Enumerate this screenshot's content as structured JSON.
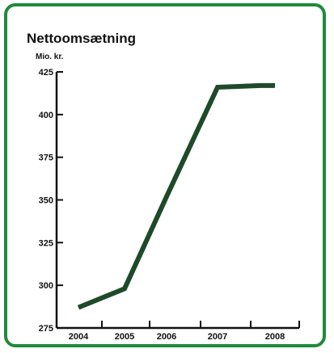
{
  "chart_data": {
    "type": "line",
    "title": "Nettoomsætning",
    "ylabel": "Mio. kr.",
    "xlabel": "",
    "x_categories": [
      "2004",
      "2005",
      "2006",
      "2007",
      "2008"
    ],
    "x": [
      2004,
      2005,
      2006,
      2007,
      2007.75,
      2008
    ],
    "values": [
      287,
      298,
      352,
      416,
      417,
      417
    ],
    "yticks": [
      275,
      300,
      325,
      350,
      375,
      400,
      425
    ],
    "ylim": [
      275,
      425
    ],
    "xlim": [
      2003.5,
      2008.5
    ],
    "grid": false,
    "legend": "none",
    "line_color": "#1e4a2a",
    "frame_color": "#1f8a3a"
  }
}
